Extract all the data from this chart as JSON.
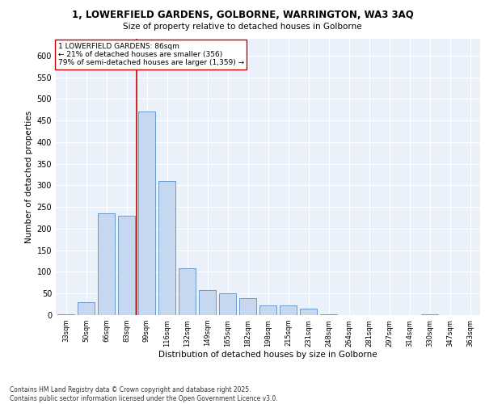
{
  "title_line1": "1, LOWERFIELD GARDENS, GOLBORNE, WARRINGTON, WA3 3AQ",
  "title_line2": "Size of property relative to detached houses in Golborne",
  "xlabel": "Distribution of detached houses by size in Golborne",
  "ylabel": "Number of detached properties",
  "bar_color": "#c5d8f0",
  "bar_edge_color": "#5a8fc4",
  "categories": [
    "33sqm",
    "50sqm",
    "66sqm",
    "83sqm",
    "99sqm",
    "116sqm",
    "132sqm",
    "149sqm",
    "165sqm",
    "182sqm",
    "198sqm",
    "215sqm",
    "231sqm",
    "248sqm",
    "264sqm",
    "281sqm",
    "297sqm",
    "314sqm",
    "330sqm",
    "347sqm",
    "363sqm"
  ],
  "values": [
    2,
    30,
    235,
    230,
    470,
    310,
    108,
    57,
    50,
    40,
    22,
    22,
    15,
    2,
    0,
    0,
    0,
    0,
    2,
    0,
    0
  ],
  "vline_x": 3.5,
  "vline_color": "#cc0000",
  "annotation_text": "1 LOWERFIELD GARDENS: 86sqm\n← 21% of detached houses are smaller (356)\n79% of semi-detached houses are larger (1,359) →",
  "annotation_box_color": "#ffffff",
  "annotation_box_edge": "#cc0000",
  "ylim": [
    0,
    640
  ],
  "yticks": [
    0,
    50,
    100,
    150,
    200,
    250,
    300,
    350,
    400,
    450,
    500,
    550,
    600
  ],
  "bg_color": "#eaf1fb",
  "grid_color": "#ffffff",
  "footer": "Contains HM Land Registry data © Crown copyright and database right 2025.\nContains public sector information licensed under the Open Government Licence v3.0.",
  "fig_width": 6.0,
  "fig_height": 5.0
}
